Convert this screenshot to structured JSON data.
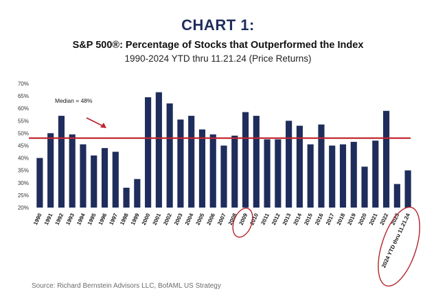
{
  "header": {
    "heading": "CHART 1:",
    "title": "S&P 500®:  Percentage of Stocks that Outperformed the Index",
    "subtitle": "1990-2024 YTD thru 11.21.24 (Price Returns)"
  },
  "source": "Source: Richard Bernstein Advisors LLC, BofAML US Strategy",
  "colors": {
    "bar": "#1f2d5c",
    "median_line": "#c0262d",
    "highlight_ellipse": "#b3232a"
  },
  "chart_data": {
    "type": "bar",
    "categories": [
      "1990",
      "1991",
      "1992",
      "1993",
      "1994",
      "1995",
      "1996",
      "1997",
      "1998",
      "1999",
      "2000",
      "2001",
      "2002",
      "2003",
      "2004",
      "2005",
      "2006",
      "2007",
      "2008",
      "2009",
      "2010",
      "2011",
      "2012",
      "2013",
      "2014",
      "2015",
      "2016",
      "2017",
      "2018",
      "2019",
      "2020",
      "2021",
      "2022",
      "2023",
      "2024 YTD thru 11.21.24"
    ],
    "values": [
      40,
      50,
      57,
      49.5,
      45.5,
      41,
      44,
      42.5,
      28,
      31.5,
      64.5,
      66.5,
      62,
      55.5,
      57,
      51.5,
      49.5,
      45,
      49,
      58.5,
      57,
      47.5,
      47.5,
      55,
      53,
      45.5,
      53.5,
      45,
      45.5,
      46.5,
      36.5,
      47,
      59,
      29.5,
      35
    ],
    "ylim": [
      20,
      70
    ],
    "yticks": [
      "20%",
      "25%",
      "30%",
      "35%",
      "40%",
      "45%",
      "50%",
      "55%",
      "60%",
      "65%",
      "70%"
    ],
    "median": 48,
    "median_label": "Median = 48%",
    "highlighted_categories": [
      "2009",
      "2024 YTD thru 11.21.24"
    ],
    "grid": false,
    "legend": "none"
  }
}
